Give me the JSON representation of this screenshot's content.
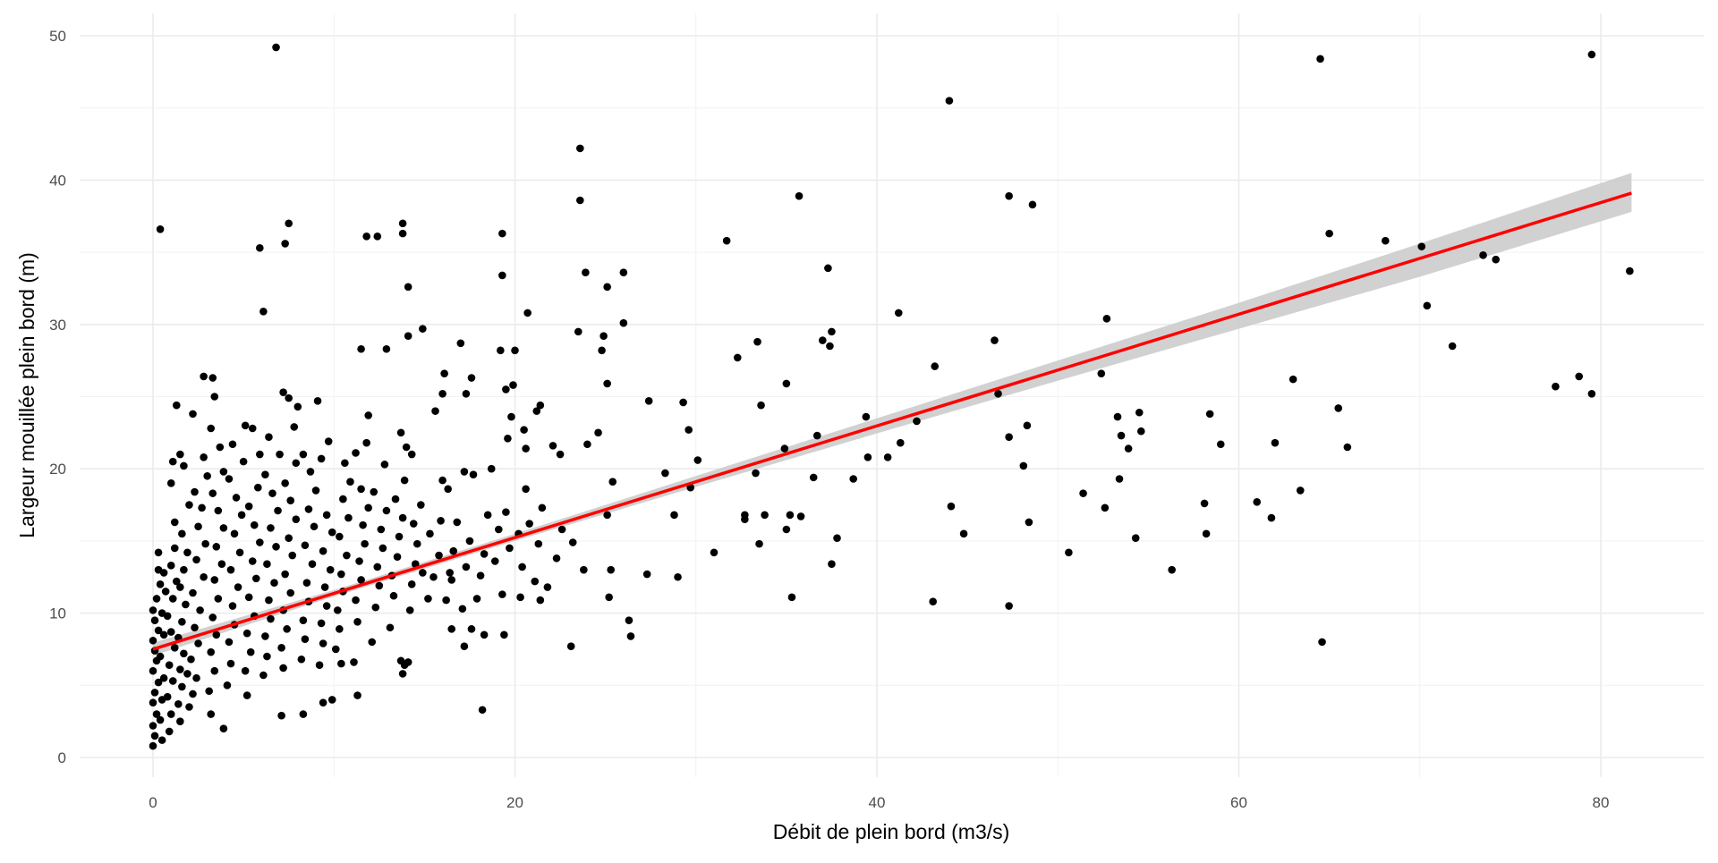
{
  "chart_data": {
    "type": "scatter",
    "title": "",
    "xlabel": "Débit de plein bord (m3/s)",
    "ylabel": "Largeur mouillée plein bord (m)",
    "xlim": [
      -4,
      86
    ],
    "ylim": [
      -1,
      52
    ],
    "x_ticks": [
      0,
      20,
      40,
      60,
      80
    ],
    "y_ticks": [
      0,
      10,
      20,
      30,
      40,
      50
    ],
    "grid": true,
    "legend": "none",
    "point_color": "#000000",
    "fit_color": "#ff0000",
    "ci_color": "#cccccc",
    "fit": {
      "method": "linear",
      "intercept": 7.5,
      "slope": 0.3868,
      "x_range": [
        0,
        81.7
      ]
    },
    "ci_band": [
      [
        0,
        7.05,
        7.95
      ],
      [
        10,
        11.15,
        11.6
      ],
      [
        20,
        15.0,
        15.5
      ],
      [
        30,
        18.75,
        19.5
      ],
      [
        40,
        22.45,
        23.5
      ],
      [
        50,
        26.1,
        27.5
      ],
      [
        60,
        29.7,
        31.5
      ],
      [
        70,
        33.3,
        35.6
      ],
      [
        81.7,
        37.8,
        40.5
      ]
    ],
    "points": [
      [
        6.8,
        49.2
      ],
      [
        0.4,
        36.6
      ],
      [
        5.9,
        35.3
      ],
      [
        7.5,
        37.0
      ],
      [
        7.3,
        35.6
      ],
      [
        6.1,
        30.9
      ],
      [
        7.2,
        25.3
      ],
      [
        2.8,
        26.4
      ],
      [
        1.3,
        24.4
      ],
      [
        11.8,
        36.1
      ],
      [
        12.4,
        36.1
      ],
      [
        13.8,
        37.0
      ],
      [
        13.8,
        36.3
      ],
      [
        14.1,
        32.6
      ],
      [
        14.9,
        29.7
      ],
      [
        11.5,
        28.3
      ],
      [
        12.9,
        28.3
      ],
      [
        17.0,
        28.7
      ],
      [
        14.1,
        29.2
      ],
      [
        19.3,
        33.4
      ],
      [
        19.3,
        36.3
      ],
      [
        20.7,
        30.8
      ],
      [
        23.6,
        42.2
      ],
      [
        23.6,
        38.6
      ],
      [
        23.9,
        33.6
      ],
      [
        23.5,
        29.5
      ],
      [
        25.1,
        32.6
      ],
      [
        26.0,
        33.6
      ],
      [
        26.0,
        30.1
      ],
      [
        24.9,
        29.2
      ],
      [
        24.8,
        28.2
      ],
      [
        31.7,
        35.8
      ],
      [
        33.4,
        28.8
      ],
      [
        32.3,
        27.7
      ],
      [
        35.7,
        38.9
      ],
      [
        37.3,
        33.9
      ],
      [
        37.5,
        29.5
      ],
      [
        37.4,
        28.5
      ],
      [
        37.0,
        28.9
      ],
      [
        41.2,
        30.8
      ],
      [
        44.0,
        45.5
      ],
      [
        43.2,
        27.1
      ],
      [
        47.3,
        38.9
      ],
      [
        48.6,
        38.3
      ],
      [
        46.5,
        28.9
      ],
      [
        52.7,
        30.4
      ],
      [
        52.4,
        26.6
      ],
      [
        64.5,
        48.4
      ],
      [
        65.0,
        36.3
      ],
      [
        68.1,
        35.8
      ],
      [
        70.1,
        35.4
      ],
      [
        70.4,
        31.3
      ],
      [
        71.8,
        28.5
      ],
      [
        73.5,
        34.8
      ],
      [
        74.2,
        34.5
      ],
      [
        79.5,
        48.7
      ],
      [
        81.6,
        33.7
      ],
      [
        77.5,
        25.7
      ],
      [
        78.8,
        26.4
      ],
      [
        79.5,
        25.2
      ],
      [
        64.6,
        8.0
      ],
      [
        56.3,
        13.0
      ],
      [
        58.1,
        17.6
      ],
      [
        58.4,
        23.8
      ],
      [
        58.2,
        15.5
      ],
      [
        59.0,
        21.7
      ],
      [
        61.0,
        17.7
      ],
      [
        61.8,
        16.6
      ],
      [
        62.0,
        21.8
      ],
      [
        63.0,
        26.2
      ],
      [
        63.4,
        18.5
      ],
      [
        65.5,
        24.2
      ],
      [
        66.0,
        21.5
      ],
      [
        53.3,
        23.6
      ],
      [
        53.5,
        22.3
      ],
      [
        53.9,
        21.4
      ],
      [
        54.5,
        23.9
      ],
      [
        54.6,
        22.6
      ],
      [
        53.4,
        19.3
      ],
      [
        54.3,
        15.2
      ],
      [
        52.6,
        17.3
      ],
      [
        51.4,
        18.3
      ],
      [
        50.6,
        14.2
      ],
      [
        48.1,
        20.2
      ],
      [
        48.3,
        23.0
      ],
      [
        48.4,
        16.3
      ],
      [
        46.7,
        25.2
      ],
      [
        47.3,
        22.2
      ],
      [
        47.3,
        10.5
      ],
      [
        44.8,
        15.5
      ],
      [
        44.1,
        17.4
      ],
      [
        43.1,
        10.8
      ],
      [
        42.2,
        23.3
      ],
      [
        40.6,
        20.8
      ],
      [
        41.3,
        21.8
      ],
      [
        39.5,
        20.8
      ],
      [
        39.4,
        23.6
      ],
      [
        38.7,
        19.3
      ],
      [
        37.8,
        15.2
      ],
      [
        37.5,
        13.4
      ],
      [
        36.7,
        22.3
      ],
      [
        36.5,
        19.4
      ],
      [
        35.8,
        16.7
      ],
      [
        35.3,
        11.1
      ],
      [
        35.2,
        16.8
      ],
      [
        35.0,
        15.8
      ],
      [
        35.0,
        25.9
      ],
      [
        34.9,
        21.4
      ],
      [
        33.8,
        16.8
      ],
      [
        33.5,
        14.8
      ],
      [
        33.3,
        19.7
      ],
      [
        33.6,
        24.4
      ],
      [
        32.7,
        16.8
      ],
      [
        32.7,
        16.5
      ],
      [
        31.0,
        14.2
      ],
      [
        30.1,
        20.6
      ],
      [
        29.7,
        18.7
      ],
      [
        29.6,
        22.7
      ],
      [
        29.3,
        24.6
      ],
      [
        28.8,
        16.8
      ],
      [
        29.0,
        12.5
      ],
      [
        28.3,
        19.7
      ],
      [
        27.4,
        24.7
      ],
      [
        27.3,
        12.7
      ],
      [
        26.3,
        9.5
      ],
      [
        26.4,
        8.4
      ],
      [
        25.2,
        11.1
      ],
      [
        23.1,
        7.7
      ],
      [
        25.3,
        13.0
      ],
      [
        23.8,
        13.0
      ],
      [
        23.2,
        14.9
      ],
      [
        25.1,
        16.8
      ],
      [
        25.4,
        19.1
      ],
      [
        24.0,
        21.7
      ],
      [
        24.6,
        22.5
      ],
      [
        25.1,
        25.9
      ],
      [
        22.5,
        21.0
      ],
      [
        21.4,
        24.4
      ],
      [
        20.6,
        21.4
      ],
      [
        20.0,
        28.2
      ],
      [
        19.8,
        23.6
      ],
      [
        19.4,
        8.5
      ],
      [
        18.2,
        3.3
      ],
      [
        19.2,
        28.2
      ],
      [
        19.5,
        25.5
      ],
      [
        21.4,
        10.9
      ],
      [
        20.3,
        11.1
      ],
      [
        17.3,
        25.2
      ],
      [
        17.6,
        26.3
      ],
      [
        17.2,
        7.7
      ],
      [
        18.3,
        8.5
      ],
      [
        17.6,
        8.9
      ],
      [
        16.1,
        26.6
      ],
      [
        16.0,
        25.2
      ],
      [
        16.5,
        8.9
      ],
      [
        16.5,
        12.3
      ],
      [
        13.7,
        6.7
      ],
      [
        13.9,
        6.4
      ],
      [
        11.3,
        4.3
      ],
      [
        9.4,
        3.8
      ],
      [
        8.3,
        3.0
      ],
      [
        7.1,
        2.9
      ],
      [
        3.9,
        2.0
      ],
      [
        0,
        0.8
      ],
      [
        0.1,
        1.5
      ],
      [
        0,
        2.2
      ],
      [
        0.2,
        3
      ],
      [
        0,
        3.8
      ],
      [
        0.1,
        4.5
      ],
      [
        0.3,
        5.2
      ],
      [
        0,
        6
      ],
      [
        0.2,
        6.7
      ],
      [
        0.1,
        7.4
      ],
      [
        0,
        8.1
      ],
      [
        0.3,
        8.8
      ],
      [
        0.1,
        9.5
      ],
      [
        0,
        10.2
      ],
      [
        0.2,
        11
      ],
      [
        0.4,
        12
      ],
      [
        0.3,
        13
      ],
      [
        0.5,
        1.2
      ],
      [
        0.4,
        2.6
      ],
      [
        0.5,
        4
      ],
      [
        0.6,
        5.5
      ],
      [
        0.4,
        7
      ],
      [
        0.6,
        8.5
      ],
      [
        0.5,
        10
      ],
      [
        0.7,
        11.5
      ],
      [
        0.6,
        12.8
      ],
      [
        0.3,
        14.2
      ],
      [
        0.9,
        1.8
      ],
      [
        1,
        3
      ],
      [
        0.8,
        4.2
      ],
      [
        1.1,
        5.3
      ],
      [
        0.9,
        6.4
      ],
      [
        1.2,
        7.6
      ],
      [
        1,
        8.7
      ],
      [
        0.8,
        9.8
      ],
      [
        1.1,
        11
      ],
      [
        1.3,
        12.2
      ],
      [
        1,
        13.3
      ],
      [
        1.2,
        14.5
      ],
      [
        1.5,
        2.5
      ],
      [
        1.4,
        3.7
      ],
      [
        1.6,
        4.9
      ],
      [
        1.5,
        6.1
      ],
      [
        1.7,
        7.2
      ],
      [
        1.4,
        8.3
      ],
      [
        1.6,
        9.4
      ],
      [
        1.8,
        10.6
      ],
      [
        1.5,
        11.8
      ],
      [
        1.7,
        13
      ],
      [
        1.9,
        14.2
      ],
      [
        1.6,
        15.5
      ],
      [
        1.2,
        16.3
      ],
      [
        1.0,
        19
      ],
      [
        1.1,
        20.5
      ],
      [
        1.5,
        21
      ],
      [
        1.7,
        20.2
      ],
      [
        2,
        17.5
      ],
      [
        2,
        3.5
      ],
      [
        1.9,
        5.8
      ],
      [
        2.2,
        4.4
      ],
      [
        2.4,
        5.5
      ],
      [
        2.1,
        6.8
      ],
      [
        2.5,
        7.9
      ],
      [
        2.3,
        9
      ],
      [
        2.6,
        10.2
      ],
      [
        2.2,
        11.4
      ],
      [
        2.8,
        12.5
      ],
      [
        2.4,
        13.7
      ],
      [
        2.9,
        14.8
      ],
      [
        2.5,
        16
      ],
      [
        2.7,
        17.3
      ],
      [
        2.3,
        18.4
      ],
      [
        3,
        19.5
      ],
      [
        2.8,
        20.8
      ],
      [
        3.2,
        3
      ],
      [
        3.1,
        4.6
      ],
      [
        3.4,
        6
      ],
      [
        3.2,
        7.3
      ],
      [
        3.5,
        8.5
      ],
      [
        3.3,
        9.7
      ],
      [
        3.6,
        11
      ],
      [
        3.4,
        12.3
      ],
      [
        3.8,
        13.4
      ],
      [
        3.5,
        14.6
      ],
      [
        3.9,
        15.9
      ],
      [
        3.6,
        17.1
      ],
      [
        3.3,
        18.3
      ],
      [
        3.7,
        21.5
      ],
      [
        3.2,
        22.8
      ],
      [
        2.2,
        23.8
      ],
      [
        3.4,
        25
      ],
      [
        3.3,
        26.3
      ],
      [
        3.9,
        19.8
      ],
      [
        4.1,
        5
      ],
      [
        4.3,
        6.5
      ],
      [
        4.2,
        8
      ],
      [
        4.5,
        9.2
      ],
      [
        4.4,
        10.5
      ],
      [
        4.7,
        11.8
      ],
      [
        4.3,
        13
      ],
      [
        4.8,
        14.2
      ],
      [
        4.5,
        15.5
      ],
      [
        4.9,
        16.8
      ],
      [
        4.6,
        18
      ],
      [
        4.2,
        19.3
      ],
      [
        5,
        20.5
      ],
      [
        4.4,
        21.7
      ],
      [
        5.2,
        4.3
      ],
      [
        5.1,
        6
      ],
      [
        5.4,
        7.3
      ],
      [
        5.2,
        8.6
      ],
      [
        5.6,
        9.8
      ],
      [
        5.3,
        11.1
      ],
      [
        5.7,
        12.4
      ],
      [
        5.5,
        13.6
      ],
      [
        5.9,
        14.9
      ],
      [
        5.6,
        16.1
      ],
      [
        5.3,
        17.4
      ],
      [
        5.8,
        18.7
      ],
      [
        5.5,
        22.8
      ],
      [
        5.9,
        21
      ],
      [
        5.1,
        23
      ],
      [
        6.1,
        5.7
      ],
      [
        6.3,
        7
      ],
      [
        6.2,
        8.4
      ],
      [
        6.5,
        9.6
      ],
      [
        6.4,
        10.9
      ],
      [
        6.7,
        12.1
      ],
      [
        6.3,
        13.4
      ],
      [
        6.8,
        14.6
      ],
      [
        6.5,
        15.9
      ],
      [
        6.9,
        17.1
      ],
      [
        6.6,
        18.3
      ],
      [
        6.2,
        19.6
      ],
      [
        7,
        21
      ],
      [
        6.4,
        22.2
      ],
      [
        7.2,
        6.2
      ],
      [
        7.1,
        7.6
      ],
      [
        7.4,
        8.9
      ],
      [
        7.2,
        10.2
      ],
      [
        7.6,
        11.4
      ],
      [
        7.3,
        12.7
      ],
      [
        7.7,
        14
      ],
      [
        7.5,
        15.2
      ],
      [
        7.9,
        16.5
      ],
      [
        7.6,
        17.8
      ],
      [
        7.3,
        19
      ],
      [
        7.8,
        22.9
      ],
      [
        8,
        24.3
      ],
      [
        7.5,
        24.9
      ],
      [
        7.9,
        20.4
      ],
      [
        8.2,
        6.8
      ],
      [
        8.4,
        8.2
      ],
      [
        8.3,
        9.5
      ],
      [
        8.6,
        10.8
      ],
      [
        8.5,
        12.1
      ],
      [
        8.8,
        13.4
      ],
      [
        8.4,
        14.7
      ],
      [
        8.9,
        16
      ],
      [
        8.6,
        17.2
      ],
      [
        9,
        18.5
      ],
      [
        8.7,
        19.8
      ],
      [
        8.3,
        21
      ],
      [
        9.2,
        6.4
      ],
      [
        9.4,
        7.9
      ],
      [
        9.3,
        9.3
      ],
      [
        9.6,
        10.5
      ],
      [
        9.5,
        11.8
      ],
      [
        9.8,
        13
      ],
      [
        9.4,
        14.3
      ],
      [
        9.9,
        15.6
      ],
      [
        9.6,
        16.8
      ],
      [
        9.3,
        20.7
      ],
      [
        9.7,
        21.9
      ],
      [
        9.1,
        24.7
      ],
      [
        9.9,
        4
      ],
      [
        10.1,
        7.5
      ],
      [
        10.3,
        8.9
      ],
      [
        10.2,
        10.2
      ],
      [
        10.5,
        11.5
      ],
      [
        10.4,
        12.7
      ],
      [
        10.7,
        14
      ],
      [
        10.3,
        15.3
      ],
      [
        10.8,
        16.6
      ],
      [
        10.5,
        17.9
      ],
      [
        10.9,
        19.1
      ],
      [
        10.6,
        20.4
      ],
      [
        11.1,
        6.6
      ],
      [
        11.3,
        9.4
      ],
      [
        11.2,
        10.9
      ],
      [
        11.5,
        12.3
      ],
      [
        11.4,
        13.6
      ],
      [
        11.7,
        14.8
      ],
      [
        11.6,
        16.1
      ],
      [
        11.9,
        17.3
      ],
      [
        11.5,
        18.6
      ],
      [
        11.8,
        21.8
      ],
      [
        11.2,
        21.1
      ],
      [
        11.9,
        23.7
      ],
      [
        10.4,
        6.5
      ],
      [
        12.1,
        8
      ],
      [
        12.3,
        10.4
      ],
      [
        12.5,
        11.9
      ],
      [
        12.4,
        13.2
      ],
      [
        12.7,
        14.5
      ],
      [
        12.6,
        15.8
      ],
      [
        12.9,
        17.1
      ],
      [
        12.2,
        18.4
      ],
      [
        12.8,
        20.3
      ],
      [
        13.1,
        9
      ],
      [
        13.3,
        11.2
      ],
      [
        13.2,
        12.6
      ],
      [
        13.5,
        13.9
      ],
      [
        13.6,
        15.3
      ],
      [
        13.8,
        16.6
      ],
      [
        13.4,
        17.9
      ],
      [
        13.9,
        19.2
      ],
      [
        13.7,
        22.5
      ],
      [
        14,
        21.5
      ],
      [
        14.2,
        10.2
      ],
      [
        14.3,
        12
      ],
      [
        14.5,
        13.4
      ],
      [
        14.6,
        14.8
      ],
      [
        14.4,
        16.2
      ],
      [
        14.8,
        17.5
      ],
      [
        14.3,
        21
      ],
      [
        14.9,
        12.8
      ],
      [
        14.1,
        6.6
      ],
      [
        13.8,
        5.8
      ],
      [
        15.2,
        11
      ],
      [
        15.5,
        12.5
      ],
      [
        15.8,
        14
      ],
      [
        15.3,
        15.5
      ],
      [
        15.9,
        16.4
      ],
      [
        16.2,
        10.9
      ],
      [
        16.4,
        12.8
      ],
      [
        16.6,
        14.3
      ],
      [
        16.8,
        16.3
      ],
      [
        16.3,
        18.6
      ],
      [
        17.1,
        10.3
      ],
      [
        17.3,
        13.2
      ],
      [
        17.5,
        15
      ],
      [
        17.7,
        19.6
      ],
      [
        17.2,
        19.8
      ],
      [
        17.9,
        11
      ],
      [
        18.1,
        12.6
      ],
      [
        18.3,
        14.1
      ],
      [
        18.5,
        16.8
      ],
      [
        18.7,
        20
      ],
      [
        18.9,
        13.6
      ],
      [
        19.1,
        15.8
      ],
      [
        19.3,
        11.3
      ],
      [
        19.5,
        17
      ],
      [
        19.7,
        14.5
      ],
      [
        19.9,
        25.8
      ],
      [
        19.6,
        22.1
      ],
      [
        16,
        19.2
      ],
      [
        15.6,
        24
      ],
      [
        20.2,
        15.5
      ],
      [
        20.4,
        13.2
      ],
      [
        20.6,
        18.6
      ],
      [
        20.8,
        16.2
      ],
      [
        21.1,
        12.2
      ],
      [
        21.3,
        14.8
      ],
      [
        21.5,
        17.3
      ],
      [
        21.8,
        11.8
      ],
      [
        22.1,
        21.6
      ],
      [
        22.3,
        13.8
      ],
      [
        22.6,
        15.8
      ],
      [
        21.2,
        24
      ],
      [
        20.5,
        22.7
      ]
    ]
  }
}
